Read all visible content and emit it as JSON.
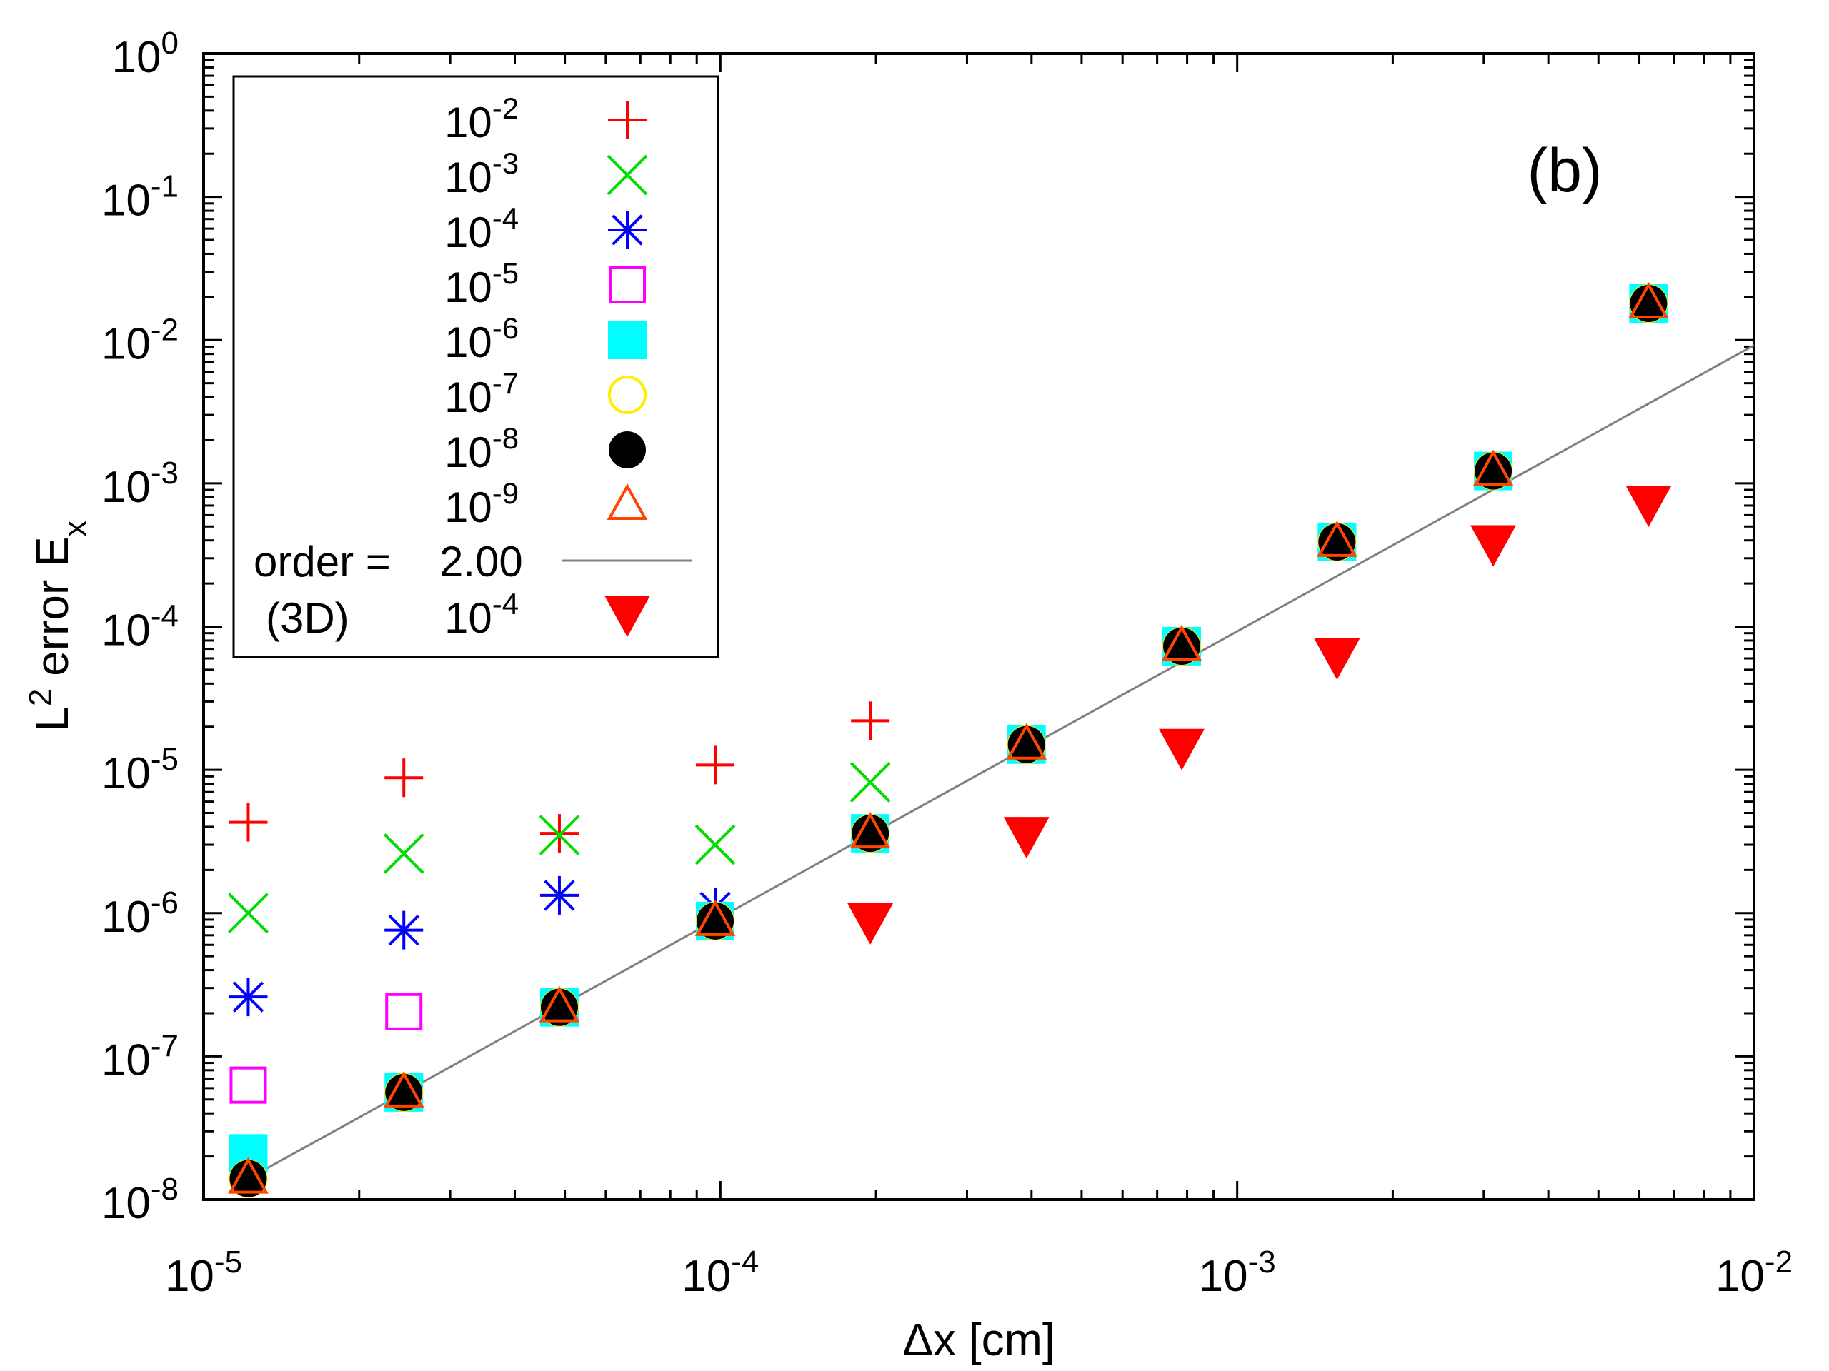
{
  "chart_data": {
    "type": "scatter",
    "panel_label": "(b)",
    "xlabel": "Δx [cm]",
    "ylabel": {
      "base": "L",
      "sup": "2",
      "mid": " error E",
      "sub": "x"
    },
    "xscale": "log",
    "yscale": "log",
    "xlim": [
      1e-05,
      0.01
    ],
    "ylim": [
      1e-08,
      1
    ],
    "x_ticks": [
      {
        "base": "10",
        "exp": "-5"
      },
      {
        "base": "10",
        "exp": "-4"
      },
      {
        "base": "10",
        "exp": "-3"
      },
      {
        "base": "10",
        "exp": "-2"
      }
    ],
    "y_ticks": [
      {
        "base": "10",
        "exp": "-8"
      },
      {
        "base": "10",
        "exp": "-7"
      },
      {
        "base": "10",
        "exp": "-6"
      },
      {
        "base": "10",
        "exp": "-5"
      },
      {
        "base": "10",
        "exp": "-4"
      },
      {
        "base": "10",
        "exp": "-3"
      },
      {
        "base": "10",
        "exp": "-2"
      },
      {
        "base": "10",
        "exp": "-1"
      },
      {
        "base": "10",
        "exp": "0"
      }
    ],
    "x": [
      1.22e-05,
      2.44e-05,
      4.88e-05,
      9.77e-05,
      0.000195,
      0.000391,
      0.000781,
      0.00156,
      0.00313,
      0.00625
    ],
    "series": [
      {
        "name": "1e-2",
        "label_base": "10",
        "label_exp": "-2",
        "marker": "plus",
        "color": "#ff0000",
        "values": [
          4.3e-06,
          8.8e-06,
          3.6e-06,
          1.08e-05,
          2.2e-05,
          null,
          null,
          null,
          null,
          null
        ]
      },
      {
        "name": "1e-3",
        "label_base": "10",
        "label_exp": "-3",
        "marker": "cross",
        "color": "#00dd00",
        "values": [
          1e-06,
          2.6e-06,
          3.5e-06,
          3e-06,
          8.2e-06,
          null,
          null,
          null,
          null,
          null
        ]
      },
      {
        "name": "1e-4",
        "label_base": "10",
        "label_exp": "-4",
        "marker": "star",
        "color": "#0000ff",
        "values": [
          2.6e-07,
          7.6e-07,
          1.33e-06,
          1.1e-06,
          null,
          null,
          null,
          null,
          null,
          null
        ]
      },
      {
        "name": "1e-5",
        "label_base": "10",
        "label_exp": "-5",
        "marker": "square-open",
        "color": "#ff00ff",
        "values": [
          6.3e-08,
          2.05e-07,
          null,
          null,
          null,
          null,
          null,
          null,
          null,
          null
        ]
      },
      {
        "name": "1e-6",
        "label_base": "10",
        "label_exp": "-6",
        "marker": "square-filled",
        "color": "#00ffff",
        "values": [
          2.1e-08,
          5.6e-08,
          2.2e-07,
          8.8e-07,
          3.6e-06,
          1.5e-05,
          7.3e-05,
          0.00039,
          0.00122,
          0.018
        ]
      },
      {
        "name": "1e-7",
        "label_base": "10",
        "label_exp": "-7",
        "marker": "circle-open",
        "color": "#ffee00",
        "values": [
          1.4e-08,
          5.6e-08,
          2.2e-07,
          8.8e-07,
          3.6e-06,
          1.5e-05,
          7.3e-05,
          0.00039,
          0.00122,
          0.018
        ]
      },
      {
        "name": "1e-8",
        "label_base": "10",
        "label_exp": "-8",
        "marker": "circle-filled",
        "color": "#000000",
        "values": [
          1.4e-08,
          5.6e-08,
          2.2e-07,
          8.8e-07,
          3.6e-06,
          1.5e-05,
          7.3e-05,
          0.00039,
          0.00122,
          0.018
        ]
      },
      {
        "name": "1e-9",
        "label_base": "10",
        "label_exp": "-9",
        "marker": "triangle-open",
        "color": "#ff4500",
        "values": [
          1.4e-08,
          5.6e-08,
          2.2e-07,
          8.8e-07,
          3.6e-06,
          1.5e-05,
          7.3e-05,
          0.00039,
          0.00122,
          0.018
        ]
      },
      {
        "name": "3D 1e-4",
        "label_prefix": "(3D)",
        "label_base": "10",
        "label_exp": "-4",
        "marker": "triangle-down-filled",
        "color": "#ff0000",
        "values": [
          null,
          null,
          null,
          null,
          8.5e-07,
          3.4e-06,
          1.4e-05,
          6e-05,
          0.00037,
          0.0007
        ]
      }
    ],
    "reference_line": {
      "label": "order =",
      "order_value": "2.00",
      "color": "#808080",
      "x": [
        1.22e-05,
        0.01
      ],
      "y": [
        1.4e-08,
        0.0092
      ]
    }
  }
}
